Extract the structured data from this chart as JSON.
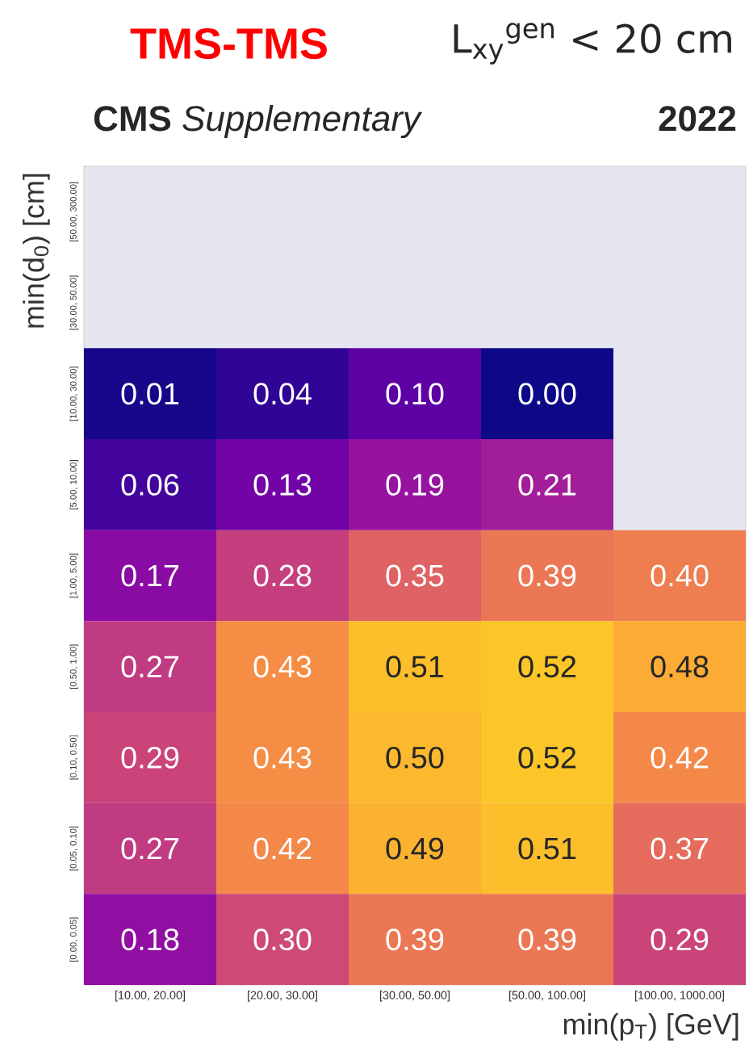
{
  "chart_data": {
    "type": "heatmap",
    "title": "**CMS** *Supplementary*",
    "annotations": [
      "TMS-TMS",
      "L$_{xy}$$^{gen}$ < 20 cm",
      "2022"
    ],
    "xlabel": "min(p$_{T}$) [GeV]",
    "ylabel": "min(d$_{0}$) [cm]",
    "categories": [
      "[10.00, 20.00]",
      "[20.00, 30.00]",
      "[30.00, 50.00]",
      "[50.00, 100.00]",
      "[100.00, 1000.00]"
    ],
    "y_categories": [
      "[50.00, 300.00]",
      "[30.00, 50.00]",
      "[10.00, 30.00]",
      "[5.00, 10.00]",
      "[1.00, 5.00]",
      "[0.50, 1.00]",
      "[0.10, 0.50]",
      "[0.05, 0.10]",
      "[0.00, 0.05]"
    ],
    "cells": [
      [
        null,
        null,
        null,
        null,
        null
      ],
      [
        null,
        null,
        null,
        null,
        null
      ],
      [
        0.01,
        0.04,
        0.1,
        0.0,
        null
      ],
      [
        0.06,
        0.13,
        0.19,
        0.21,
        null
      ],
      [
        0.17,
        0.28,
        0.35,
        0.39,
        0.4
      ],
      [
        0.27,
        0.43,
        0.51,
        0.52,
        0.48
      ],
      [
        0.29,
        0.43,
        0.5,
        0.52,
        0.42
      ],
      [
        0.27,
        0.42,
        0.49,
        0.51,
        0.37
      ],
      [
        0.18,
        0.3,
        0.39,
        0.39,
        0.29
      ]
    ],
    "cell_labels": [
      [
        null,
        null,
        null,
        null,
        null
      ],
      [
        null,
        null,
        null,
        null,
        null
      ],
      [
        "0.01",
        "0.04",
        "0.10",
        "0.00",
        null
      ],
      [
        "0.06",
        "0.13",
        "0.19",
        "0.21",
        null
      ],
      [
        "0.17",
        "0.28",
        "0.35",
        "0.39",
        "0.40"
      ],
      [
        "0.27",
        "0.43",
        "0.51",
        "0.52",
        "0.48"
      ],
      [
        "0.29",
        "0.43",
        "0.50",
        "0.52",
        "0.42"
      ],
      [
        "0.27",
        "0.42",
        "0.49",
        "0.51",
        "0.37"
      ],
      [
        "0.18",
        "0.30",
        "0.39",
        "0.39",
        "0.29"
      ]
    ]
  }
}
